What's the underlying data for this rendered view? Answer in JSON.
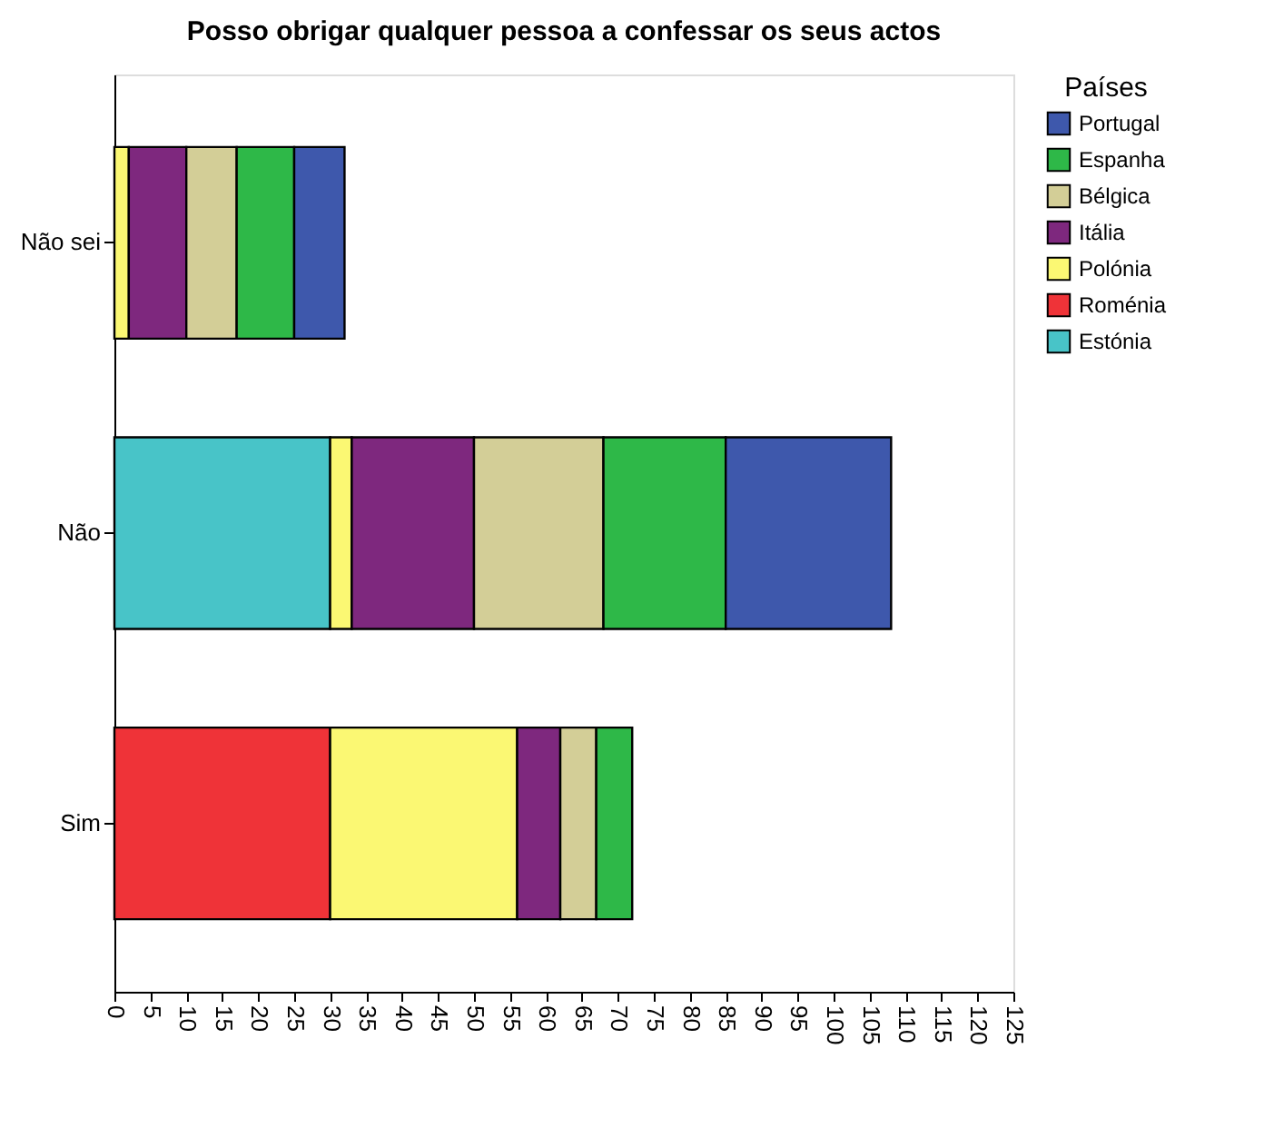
{
  "chart_data": {
    "type": "bar",
    "orientation": "horizontal",
    "stacked": true,
    "title": "Posso obrigar qualquer pessoa a confessar os seus actos",
    "legend_title": "Países",
    "legend": "right",
    "grid": false,
    "categories": [
      "Não sei",
      "Não",
      "Sim"
    ],
    "xlim": [
      0,
      125
    ],
    "xticks": [
      0,
      5,
      10,
      15,
      20,
      25,
      30,
      35,
      40,
      45,
      50,
      55,
      60,
      65,
      70,
      75,
      80,
      85,
      90,
      95,
      100,
      105,
      110,
      115,
      120,
      125
    ],
    "series": [
      {
        "name": "Estónia",
        "color": "#48c4c8",
        "values": [
          null,
          30,
          null
        ]
      },
      {
        "name": "Roménia",
        "color": "#ef3338",
        "values": [
          null,
          null,
          30
        ]
      },
      {
        "name": "Polónia",
        "color": "#fbf873",
        "values": [
          2,
          3,
          26
        ]
      },
      {
        "name": "Itália",
        "color": "#7e287e",
        "values": [
          8,
          17,
          6
        ]
      },
      {
        "name": "Bélgica",
        "color": "#d3ce97",
        "values": [
          7,
          18,
          5
        ]
      },
      {
        "name": "Espanha",
        "color": "#2eb848",
        "values": [
          8,
          17,
          5
        ]
      },
      {
        "name": "Portugal",
        "color": "#3e58ac",
        "values": [
          7,
          23,
          null
        ]
      }
    ]
  }
}
